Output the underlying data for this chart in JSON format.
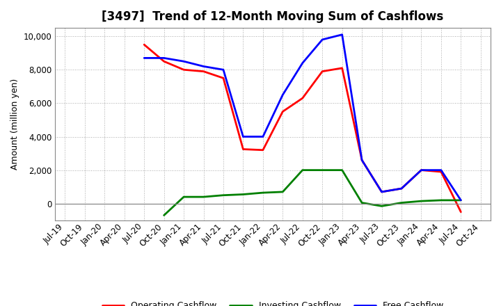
{
  "title": "[3497]  Trend of 12-Month Moving Sum of Cashflows",
  "ylabel": "Amount (million yen)",
  "background_color": "#ffffff",
  "x_labels": [
    "Jul-19",
    "Oct-19",
    "Jan-20",
    "Apr-20",
    "Jul-20",
    "Oct-20",
    "Jan-21",
    "Apr-21",
    "Jul-21",
    "Oct-21",
    "Jan-22",
    "Apr-22",
    "Jul-22",
    "Oct-22",
    "Jan-23",
    "Apr-23",
    "Jul-23",
    "Oct-23",
    "Jan-24",
    "Apr-24",
    "Jul-24",
    "Oct-24"
  ],
  "operating_cashflow": [
    null,
    null,
    null,
    null,
    9500,
    8500,
    8000,
    7900,
    7500,
    3250,
    3200,
    5500,
    6300,
    7900,
    8100,
    2600,
    700,
    900,
    2000,
    1900,
    -500,
    null
  ],
  "investing_cashflow": [
    null,
    null,
    null,
    null,
    null,
    -700,
    400,
    400,
    500,
    550,
    650,
    700,
    2000,
    2000,
    2000,
    50,
    -150,
    50,
    150,
    200,
    200,
    null
  ],
  "free_cashflow": [
    null,
    null,
    null,
    null,
    8700,
    8700,
    8500,
    8200,
    8000,
    4000,
    4000,
    6500,
    8400,
    9800,
    10100,
    2600,
    700,
    900,
    2000,
    2000,
    200,
    null
  ],
  "operating_color": "#ff0000",
  "investing_color": "#008000",
  "free_color": "#0000ff",
  "ylim": [
    -1000,
    10500
  ],
  "yticks": [
    0,
    2000,
    4000,
    6000,
    8000,
    10000
  ],
  "line_width": 2.0,
  "title_fontsize": 12,
  "ylabel_fontsize": 9,
  "tick_fontsize": 8.5
}
